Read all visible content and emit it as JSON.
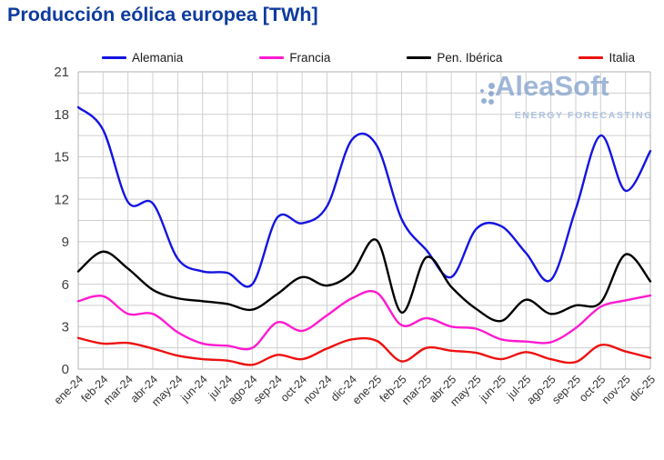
{
  "title": "Producción eólica europea [TWh]",
  "watermark": {
    "brand": "AleaSoft",
    "tagline": "ENERGY FORECASTING"
  },
  "chart_data": {
    "type": "line",
    "title": "Producción eólica europea [TWh]",
    "xlabel": "",
    "ylabel": "",
    "ylim": [
      0,
      21
    ],
    "y_major_tick_step": 3,
    "y_grid_step": 1.5,
    "grid": true,
    "legend_position": "top",
    "x_categories": [
      "ene-24",
      "feb-24",
      "mar-24",
      "abr-24",
      "may-24",
      "jun-24",
      "jul-24",
      "ago-24",
      "sep-24",
      "oct-24",
      "nov-24",
      "dic-24",
      "ene-25",
      "feb-25",
      "mar-25",
      "abr-25",
      "may-25",
      "jun-25",
      "jul-25",
      "ago-25",
      "sep-25",
      "oct-25",
      "nov-25",
      "dic-25"
    ],
    "series": [
      {
        "name": "Alemania",
        "color": "#1414e0",
        "values": [
          18.5,
          16.9,
          11.8,
          11.7,
          7.8,
          6.9,
          6.8,
          6.0,
          10.7,
          10.3,
          11.5,
          16.2,
          15.8,
          10.6,
          8.4,
          6.5,
          9.9,
          10.1,
          8.2,
          6.3,
          11.3,
          16.5,
          12.6,
          15.4
        ]
      },
      {
        "name": "Francia",
        "color": "#ff1ad1",
        "values": [
          4.8,
          5.15,
          3.9,
          3.9,
          2.6,
          1.8,
          1.65,
          1.5,
          3.3,
          2.7,
          3.8,
          5.0,
          5.4,
          3.1,
          3.6,
          3.0,
          2.85,
          2.1,
          1.95,
          1.9,
          2.9,
          4.4,
          4.85,
          5.2
        ]
      },
      {
        "name": "Pen. Ibérica",
        "color": "#000000",
        "values": [
          6.9,
          8.3,
          7.1,
          5.6,
          5.0,
          4.8,
          4.6,
          4.2,
          5.3,
          6.5,
          5.9,
          6.8,
          9.1,
          4.0,
          7.9,
          5.8,
          4.25,
          3.4,
          4.9,
          3.9,
          4.5,
          4.7,
          8.1,
          6.2
        ]
      },
      {
        "name": "Italia",
        "color": "#ee1111",
        "values": [
          2.2,
          1.8,
          1.85,
          1.45,
          0.95,
          0.7,
          0.6,
          0.3,
          1.0,
          0.7,
          1.45,
          2.1,
          2.0,
          0.55,
          1.5,
          1.3,
          1.15,
          0.7,
          1.2,
          0.7,
          0.5,
          1.7,
          1.25,
          0.8
        ]
      }
    ]
  }
}
